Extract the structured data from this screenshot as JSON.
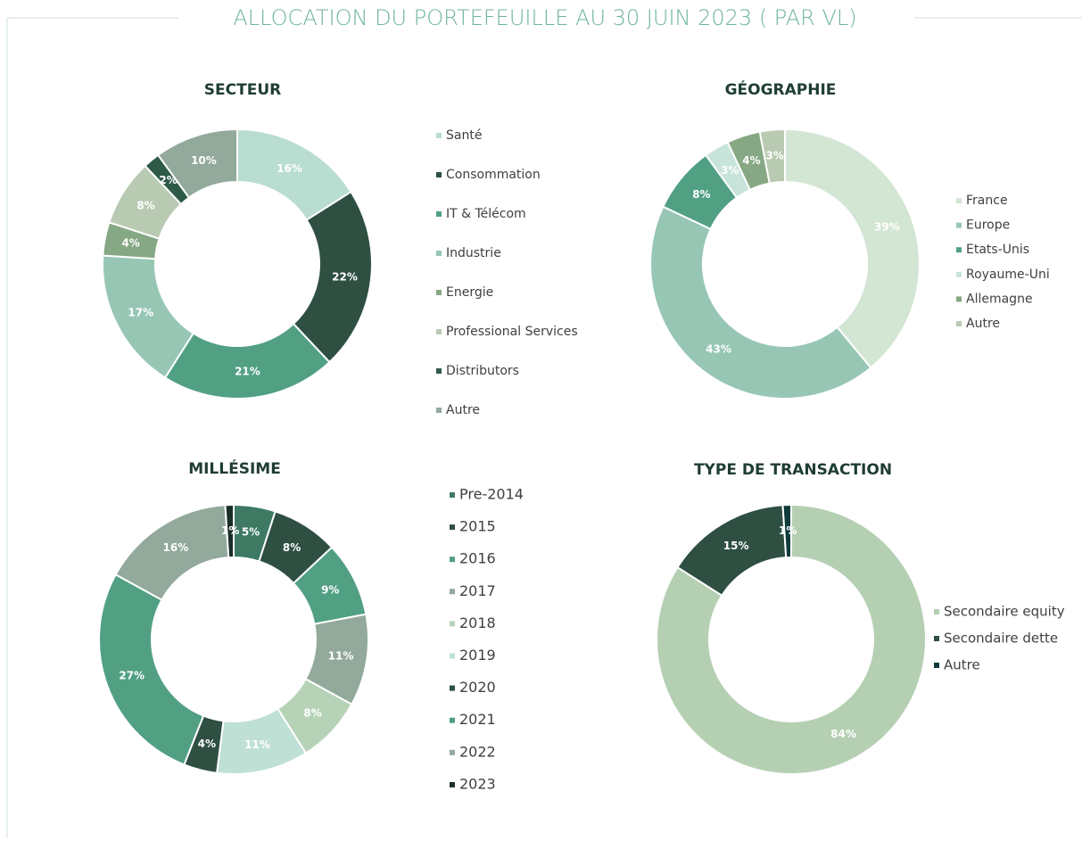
{
  "title": "ALLOCATION DU PORTEFEUILLE AU 30 JUIN 2023 ( PAR VL)",
  "chart_data": [
    {
      "type": "donut",
      "title": "SECTEUR",
      "categories": [
        "Santé",
        "Consommation",
        "IT & Télécom",
        "Industrie",
        "Energie",
        "Professional Services",
        "Distributors",
        "Autre"
      ],
      "values": [
        16,
        22,
        21,
        17,
        4,
        8,
        2,
        10
      ],
      "value_labels": [
        "16%",
        "22%",
        "21%",
        "17%",
        "4%",
        "8%",
        "2%",
        "10%"
      ],
      "colors": [
        "#b9ddd0",
        "#2e4f41",
        "#52a083",
        "#97c7b4",
        "#86a884",
        "#b9cab3",
        "#2e5a48",
        "#92a99c"
      ]
    },
    {
      "type": "donut",
      "title": "GÉOGRAPHIE",
      "categories": [
        "France",
        "Europe",
        "Etats-Unis",
        "Royaume-Uni",
        "Allemagne",
        "Autre"
      ],
      "values": [
        39,
        43,
        8,
        3,
        4,
        3
      ],
      "value_labels": [
        "39%",
        "43%",
        "8%",
        "3%",
        "4%",
        "3%"
      ],
      "colors": [
        "#d3e5d3",
        "#97c7b4",
        "#52a083",
        "#c8e3da",
        "#86a884",
        "#b9cab3"
      ]
    },
    {
      "type": "donut",
      "title": "MILLÉSIME",
      "categories": [
        "Pre-2014",
        "2015",
        "2016",
        "2017",
        "2018",
        "2019",
        "2020",
        "2021",
        "2022",
        "2023"
      ],
      "values": [
        5,
        8,
        9,
        11,
        8,
        11,
        4,
        27,
        16,
        1
      ],
      "value_labels": [
        "5%",
        "8%",
        "9%",
        "11%",
        "8%",
        "11%",
        "4%",
        "27%",
        "16%",
        "1%"
      ],
      "colors": [
        "#3e7a63",
        "#2e4f41",
        "#52a083",
        "#92a99c",
        "#b7d3b7",
        "#bfe0d4",
        "#2e4f41",
        "#52a083",
        "#92a99c",
        "#1a2e28"
      ]
    },
    {
      "type": "donut",
      "title": "TYPE DE TRANSACTION",
      "categories": [
        "Secondaire equity",
        "Secondaire dette",
        "Autre"
      ],
      "values": [
        84,
        15,
        1
      ],
      "value_labels": [
        "84%",
        "15%",
        "1%"
      ],
      "colors": [
        "#b5cfb3",
        "#2e4f41",
        "#0f3b3b"
      ]
    }
  ]
}
